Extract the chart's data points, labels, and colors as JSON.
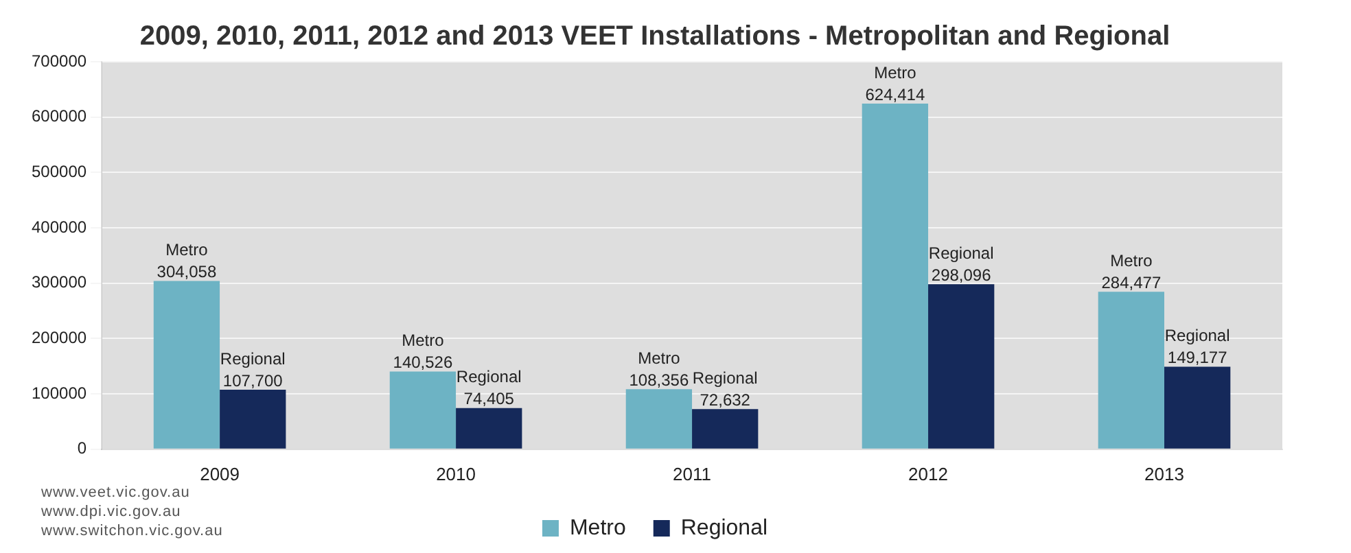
{
  "chart_data": {
    "type": "bar",
    "title": "2009, 2010, 2011, 2012 and 2013 VEET Installations - Metropolitan and Regional",
    "categories": [
      "2009",
      "2010",
      "2011",
      "2012",
      "2013"
    ],
    "series": [
      {
        "name": "Metro",
        "color": "#6db3c4",
        "values": [
          304058,
          140526,
          108356,
          624414,
          284477
        ],
        "value_labels": [
          "304,058",
          "140,526",
          "108,356",
          "624,414",
          "284,477"
        ]
      },
      {
        "name": "Regional",
        "color": "#15295a",
        "values": [
          107700,
          74405,
          72632,
          298096,
          149177
        ],
        "value_labels": [
          "107,700",
          "74,405",
          "72,632",
          "298,096",
          "149,177"
        ]
      }
    ],
    "ylim": [
      0,
      700000
    ],
    "yticks": [
      0,
      100000,
      200000,
      300000,
      400000,
      500000,
      600000,
      700000
    ],
    "grid": "y",
    "legend": "bottom",
    "annotations": [
      "www.veet.vic.gov.au",
      "www.dpi.vic.gov.au",
      "www.switchon.vic.gov.au"
    ]
  }
}
